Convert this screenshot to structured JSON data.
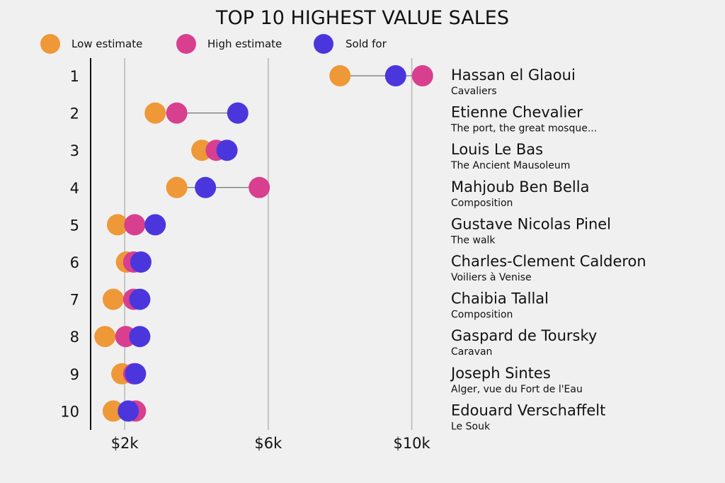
{
  "chart_data": {
    "type": "dot-range",
    "title": "TOP 10 HIGHEST VALUE SALES",
    "legend": [
      {
        "key": "low",
        "label": "Low estimate",
        "color": "#ee9838"
      },
      {
        "key": "high",
        "label": "High estimate",
        "color": "#d83f8f"
      },
      {
        "key": "sold",
        "label": "Sold for",
        "color": "#4b36de"
      }
    ],
    "x_ticks": [
      {
        "value": 2000,
        "label": "$2k"
      },
      {
        "value": 6000,
        "label": "$6k"
      },
      {
        "value": 10000,
        "label": "$10k"
      }
    ],
    "xlim": [
      1050,
      10600
    ],
    "rows": [
      {
        "rank": "1",
        "artist": "Hassan el Glaoui",
        "work": "Cavaliers",
        "low": 8000,
        "high": 10300,
        "sold": 9550
      },
      {
        "rank": "2",
        "artist": "Etienne Chevalier",
        "work": "The port, the great mosque...",
        "low": 2850,
        "high": 3450,
        "sold": 5150
      },
      {
        "rank": "3",
        "artist": "Louis Le Bas",
        "work": "The Ancient Mausoleum",
        "low": 4150,
        "high": 4550,
        "sold": 4850
      },
      {
        "rank": "4",
        "artist": "Mahjoub Ben Bella",
        "work": "Composition",
        "low": 3450,
        "high": 5750,
        "sold": 4250
      },
      {
        "rank": "5",
        "artist": "Gustave Nicolas Pinel",
        "work": "The walk",
        "low": 1800,
        "high": 2280,
        "sold": 2850
      },
      {
        "rank": "6",
        "artist": "Charles-Clement Calderon",
        "work": "Voiliers à Venise",
        "low": 2050,
        "high": 2250,
        "sold": 2450
      },
      {
        "rank": "7",
        "artist": "Chaibia Tallal",
        "work": "Composition",
        "low": 1680,
        "high": 2250,
        "sold": 2420
      },
      {
        "rank": "8",
        "artist": "Gaspard de Toursky",
        "work": "Caravan",
        "low": 1450,
        "high": 2030,
        "sold": 2420
      },
      {
        "rank": "9",
        "artist": "Joseph Sintes",
        "work": "Alger, vue du Fort de l'Eau",
        "low": 1920,
        "high": 2250,
        "sold": 2300
      },
      {
        "rank": "10",
        "artist": "Edouard Verschaffelt",
        "work": "Le Souk",
        "low": 1680,
        "high": 2300,
        "sold": 2100
      }
    ]
  }
}
